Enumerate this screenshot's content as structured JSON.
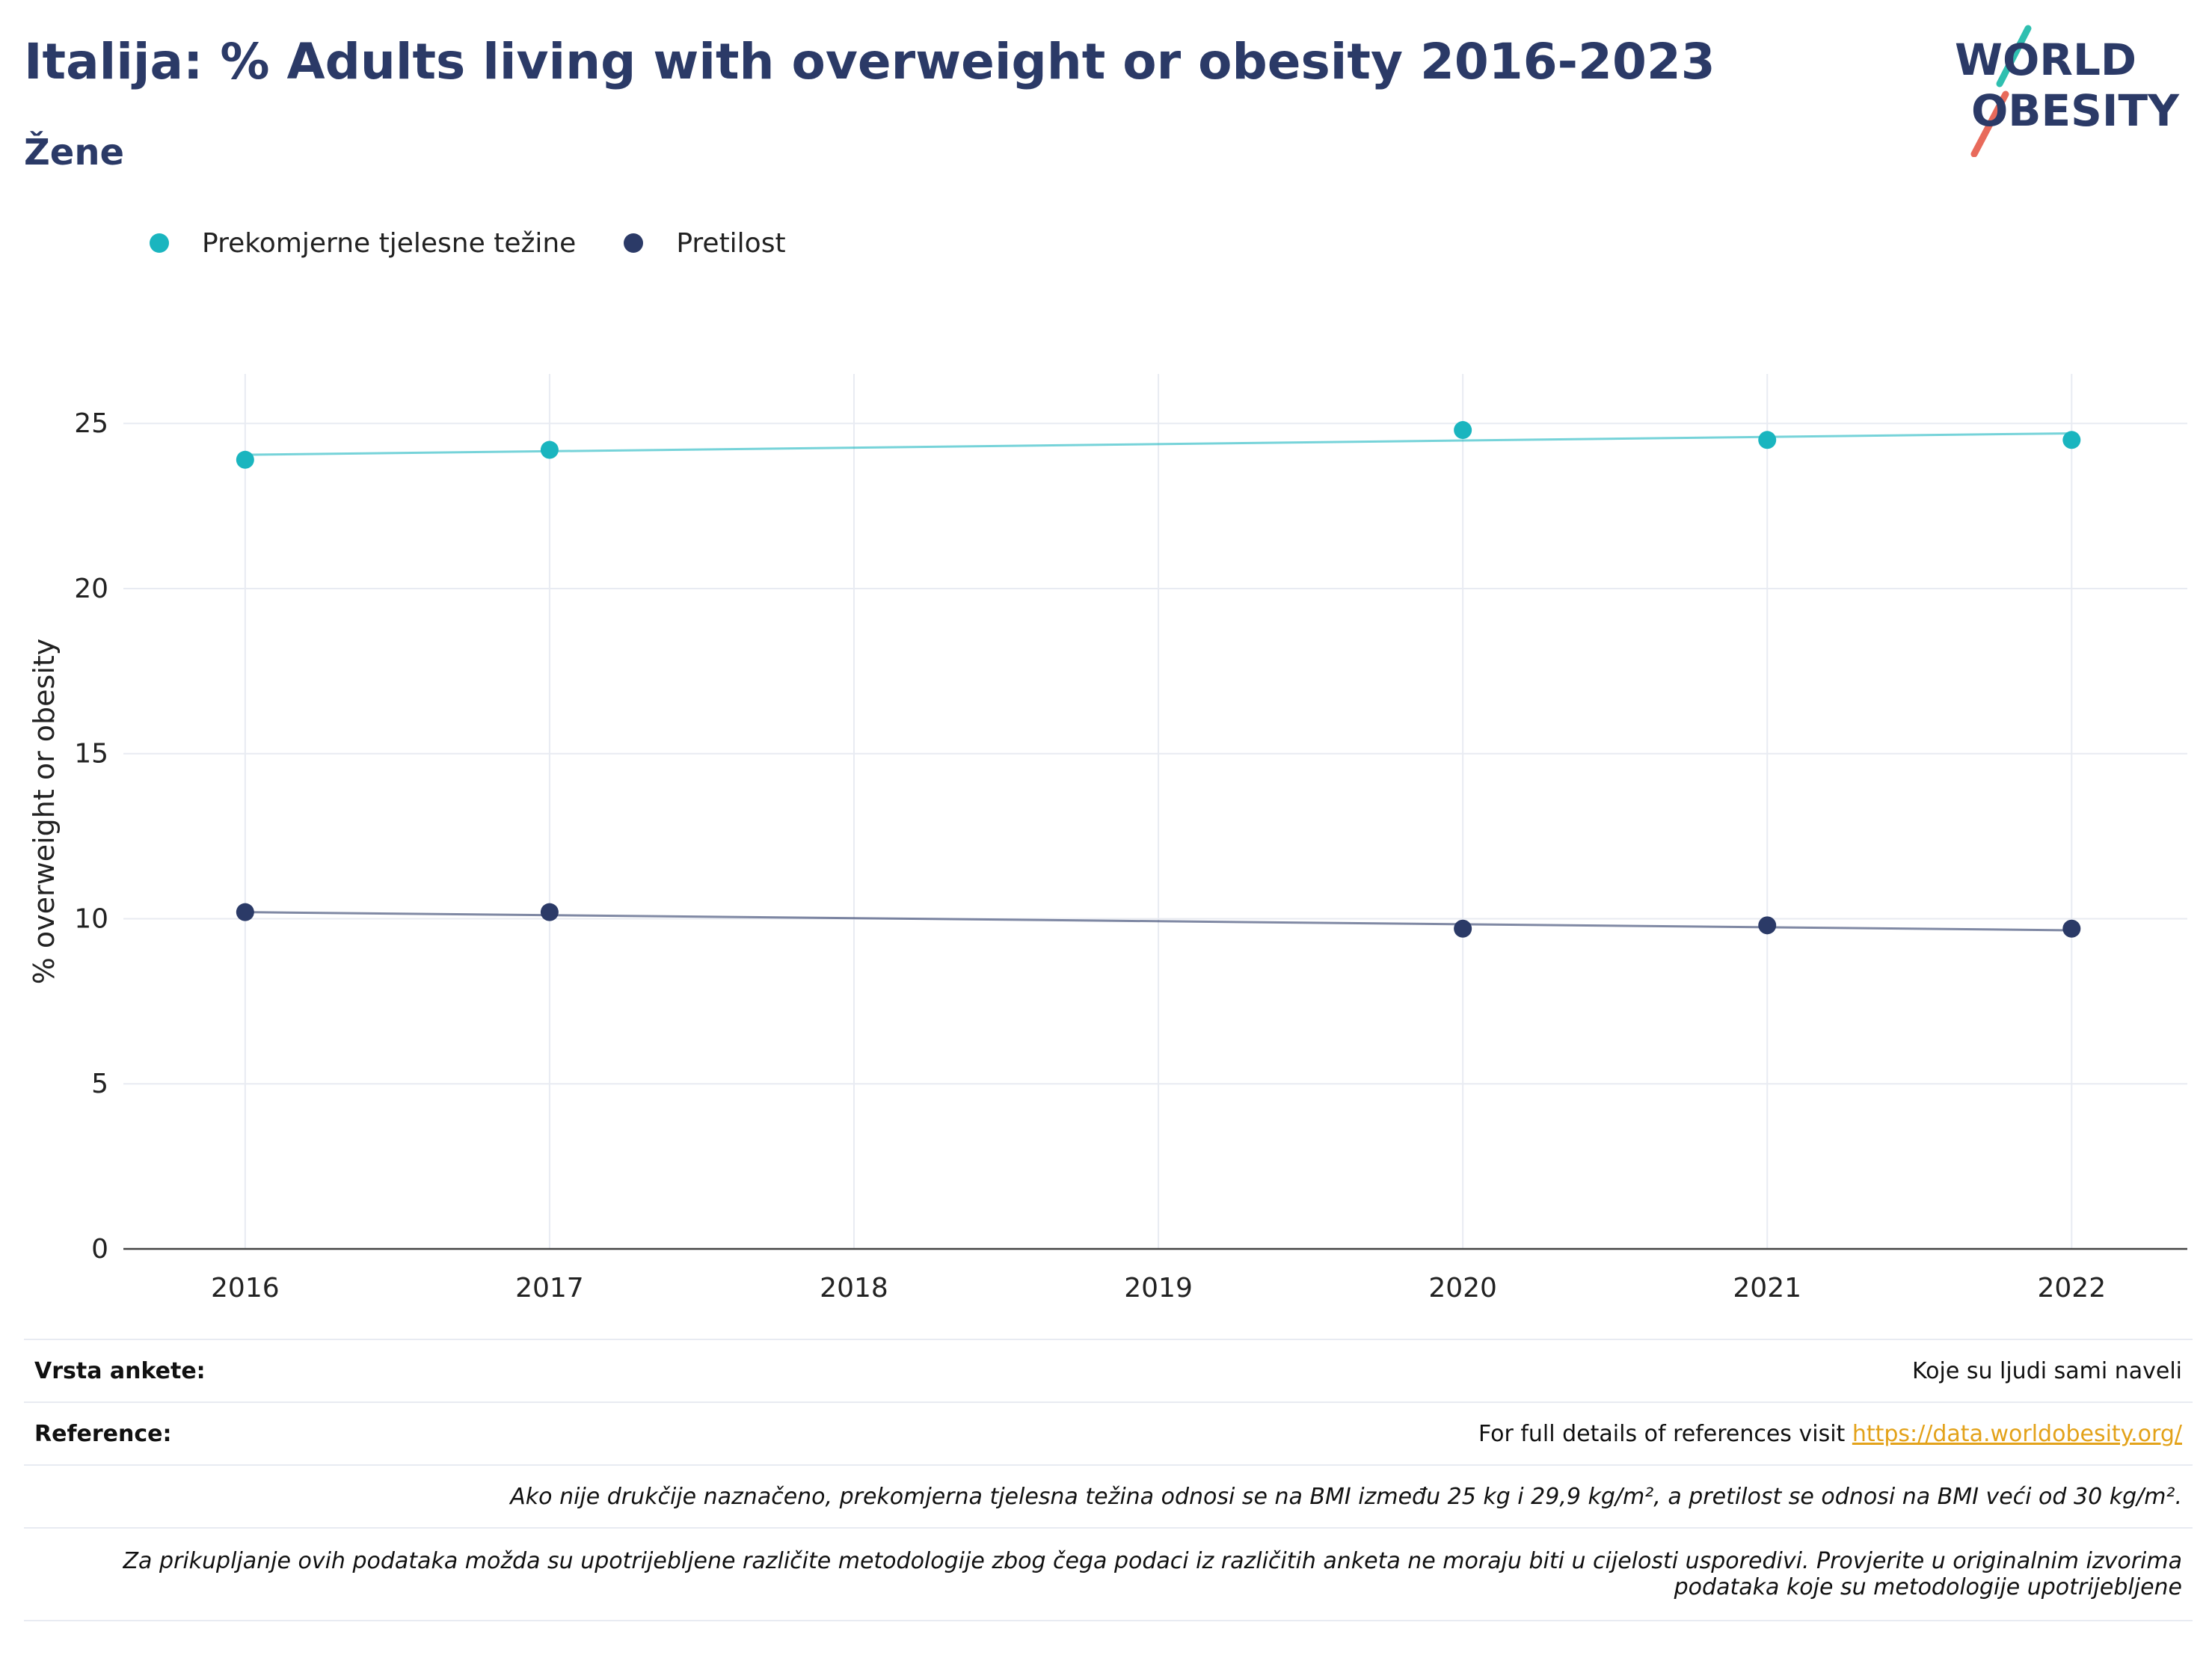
{
  "header": {
    "title": "Italija: % Adults living with overweight or obesity 2016-2023",
    "subtitle": "Žene"
  },
  "logo": {
    "line1": "WORLD",
    "line2": "OBESITY"
  },
  "colors": {
    "overweight": "#1ab5bf",
    "obesity": "#2b3a67",
    "title": "#2b3a67",
    "link": "#e3a21a",
    "logo_teal": "#2fbfb0",
    "logo_red": "#e86a5b"
  },
  "chart_data": {
    "type": "line",
    "title": "Italija: % Adults living with overweight or obesity 2016-2023",
    "subtitle": "Žene",
    "xlabel": "",
    "ylabel": "% overweight or obesity",
    "categories": [
      "2016",
      "2017",
      "2018",
      "2019",
      "2020",
      "2021",
      "2022"
    ],
    "x": [
      2016,
      2017,
      2020,
      2021,
      2022
    ],
    "xlim": [
      2015.6,
      2022.38
    ],
    "ylim": [
      0,
      26.5
    ],
    "yticks": [
      0,
      5,
      10,
      15,
      20,
      25
    ],
    "grid": true,
    "legend_position": "top-left",
    "series": [
      {
        "name": "Prekomjerne tjelesne težine",
        "color": "#1ab5bf",
        "values": [
          23.9,
          24.2,
          24.8,
          24.5,
          24.5
        ],
        "trend": [
          24.05,
          24.7
        ]
      },
      {
        "name": "Pretilost",
        "color": "#2b3a67",
        "values": [
          10.2,
          10.2,
          9.7,
          9.8,
          9.7
        ],
        "trend": [
          10.2,
          9.65
        ]
      }
    ]
  },
  "info": {
    "survey_label": "Vrsta ankete:",
    "survey_value": "Koje su ljudi sami naveli",
    "ref_label": "Reference:",
    "ref_text": "For full details of references visit ",
    "ref_link": "https://data.worldobesity.org/",
    "note1": "Ako nije drukčije naznačeno, prekomjerna tjelesna težina odnosi se na BMI između 25 kg i 29,9 kg/m², a pretilost se odnosi na BMI veći od 30 kg/m².",
    "note2a": "Za prikupljanje ovih podataka možda su upotrijebljene različite metodologije zbog čega podaci iz različitih anketa ne moraju biti u cijelosti usporedivi. Provjerite u originalnim izvorima",
    "note2b": "podataka koje su metodologije upotrijebljene"
  }
}
